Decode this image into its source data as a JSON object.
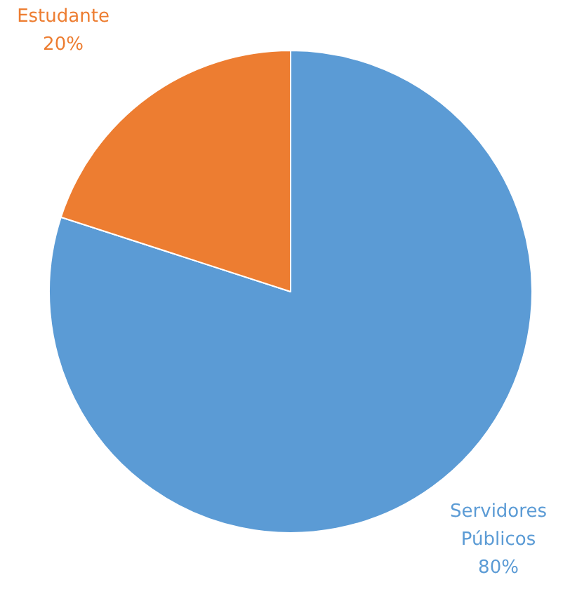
{
  "chart_data": {
    "type": "pie",
    "categories": [
      "Servidores Públicos",
      "Estudante"
    ],
    "values": [
      80,
      20
    ],
    "colors": [
      "#5b9bd5",
      "#ed7d31"
    ],
    "value_labels": [
      "80%",
      "20%"
    ],
    "legend": false
  }
}
